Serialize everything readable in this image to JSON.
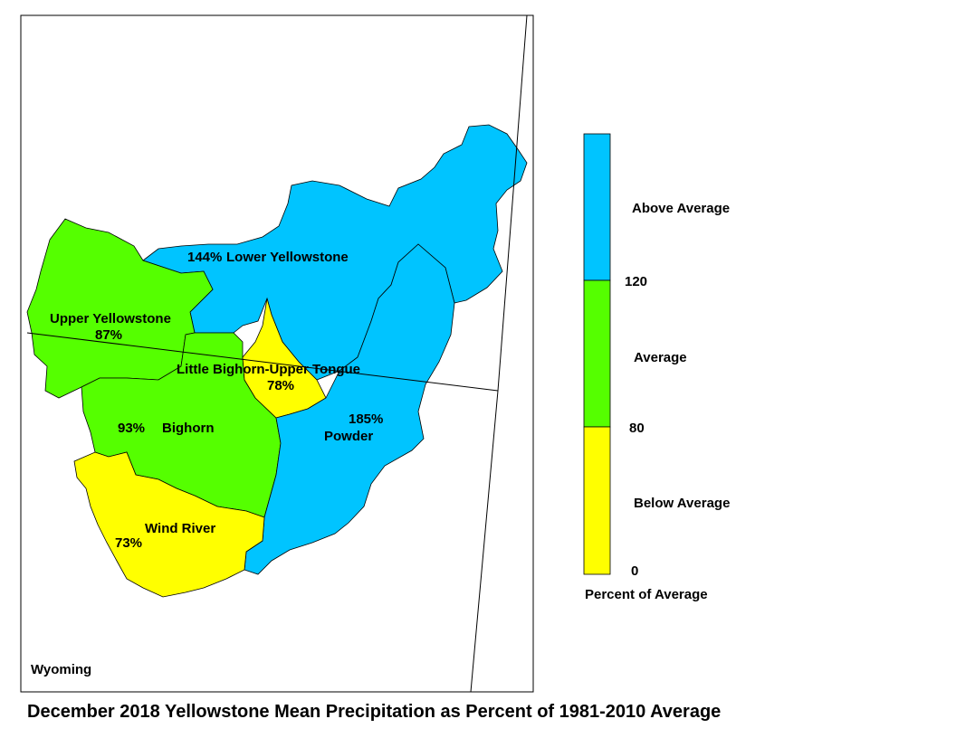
{
  "title": "December 2018 Yellowstone Mean Precipitation as Percent of 1981-2010 Average",
  "state_label": "Wyoming",
  "colors": {
    "above": "#00c4ff",
    "average": "#55ff00",
    "below": "#ffff00",
    "border": "#000000"
  },
  "basins": [
    {
      "name": "Lower Yellowstone",
      "percent": "144%",
      "category": "above"
    },
    {
      "name": "Upper Yellowstone",
      "percent": "87%",
      "category": "average"
    },
    {
      "name": "Little Bighorn-Upper Tongue",
      "percent": "78%",
      "category": "below"
    },
    {
      "name": "Bighorn",
      "percent": "93%",
      "category": "average"
    },
    {
      "name": "Powder",
      "percent": "185%",
      "category": "above"
    },
    {
      "name": "Wind River",
      "percent": "73%",
      "category": "below"
    }
  ],
  "legend": {
    "caption": "Percent of Average",
    "classes": [
      {
        "label": "Above Average",
        "category": "above"
      },
      {
        "label": "Average",
        "category": "average"
      },
      {
        "label": "Below Average",
        "category": "below"
      }
    ],
    "breaks": [
      "120",
      "80",
      "0"
    ]
  }
}
